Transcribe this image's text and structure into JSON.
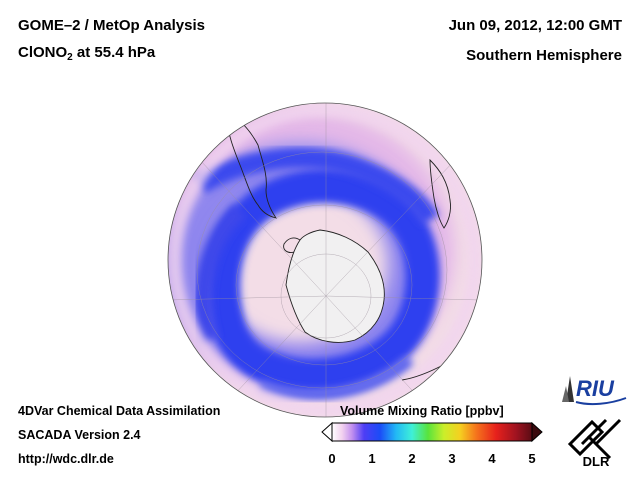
{
  "header": {
    "title_line1": "GOME–2 / MetOp Analysis",
    "species_main": "ClONO",
    "species_sub": "2",
    "species_level": " at 55.4 hPa",
    "datetime": "Jun 09, 2012, 12:00 GMT",
    "region": "Southern Hemisphere"
  },
  "footer": {
    "line1": "4DVar Chemical Data Assimilation",
    "line2": "SACADA Version 2.4",
    "line3": "http://wdc.dlr.de"
  },
  "colorbar": {
    "label": "Volume Mixing Ratio [ppbv]",
    "ticks": [
      "0",
      "1",
      "2",
      "3",
      "4",
      "5"
    ],
    "min": 0,
    "max": 5
  },
  "logos": {
    "riu": "RIU",
    "dlr": "DLR"
  },
  "colors": {
    "ocean_low": "#f3dde6",
    "ring_blue": "#2a3cf0",
    "ring_mid": "#7f8cf0",
    "antarctica": "#f1f0f1",
    "coast": "#222222"
  }
}
